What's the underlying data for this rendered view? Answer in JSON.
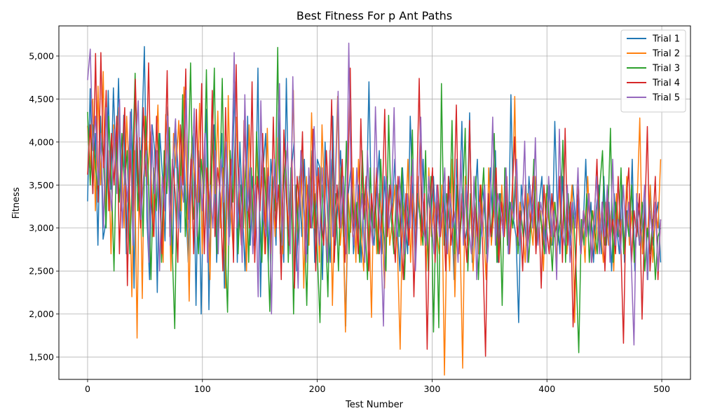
{
  "chart_data": {
    "type": "line",
    "title": "Best Fitness For p Ant Paths",
    "xlabel": "Test Number",
    "ylabel": "Fitness",
    "xlim": [
      -25,
      525
    ],
    "ylim": [
      1240,
      5350
    ],
    "x_ticks": [
      0,
      100,
      200,
      300,
      400,
      500
    ],
    "y_ticks": [
      1500,
      2000,
      2500,
      3000,
      3500,
      4000,
      4500,
      5000
    ],
    "y_tick_labels": [
      "1,500",
      "2,000",
      "2,500",
      "3,000",
      "3,500",
      "4,000",
      "4,500",
      "5,000"
    ],
    "grid": true,
    "legend_position": "top-right",
    "x_start": 0,
    "x_end": 499,
    "series": [
      {
        "name": "Trial 1",
        "color": "#1f77b4",
        "values": [
          3310,
          4620,
          3400,
          4100,
          2800,
          4300,
          2870,
          3050,
          4600,
          3450,
          4630,
          3700,
          4740,
          3200,
          4310,
          2700,
          3650,
          4380,
          2300,
          4230,
          3250,
          4060,
          5110,
          3100,
          2400,
          4200,
          3900,
          2250,
          4100,
          3600,
          2850,
          4410,
          3400,
          2700,
          4250,
          3700,
          2950,
          4180,
          3300,
          2600,
          3800,
          4100,
          2100,
          3900,
          2000,
          3600,
          4380,
          2050,
          3700,
          4200,
          2600,
          3400,
          4100,
          2300,
          3900,
          2900,
          3500,
          4700,
          2600,
          4000,
          3200,
          2500,
          4300,
          2800,
          3600,
          3100,
          4860,
          2200,
          3700,
          4100,
          2600,
          3800,
          3400,
          2800,
          4500,
          3200,
          2600,
          4740,
          3100,
          3700,
          4000,
          2500,
          3600,
          2900,
          3800,
          2700,
          3300,
          3900,
          2600,
          3800,
          3700,
          2400,
          4000,
          3100,
          2600,
          4300,
          2800,
          3300,
          3900,
          3000,
          1860,
          3400,
          3700,
          2700,
          3100,
          3500,
          2600,
          3400,
          3200,
          4700,
          3100,
          2800,
          3400,
          3900,
          2700,
          3600,
          3000,
          3500,
          3200,
          3800,
          3000,
          2500,
          3700,
          3100,
          2700,
          4300,
          3300,
          2600,
          3500,
          3000,
          3800,
          2800,
          3400,
          3100,
          3600,
          2900,
          3300,
          3000,
          3500,
          2700,
          3600,
          3200,
          2400,
          3800,
          3100,
          4240,
          2800,
          3000,
          4340,
          2600,
          3300,
          3800,
          2700,
          3500,
          3100,
          2900,
          3700,
          3000,
          3900,
          2600,
          3400,
          3100,
          3600,
          2700,
          4550,
          3100,
          2900,
          1900,
          3500,
          3200,
          2800,
          3600,
          3100,
          3400,
          2900,
          3300,
          3600,
          2700,
          3100,
          3500,
          2800,
          4240,
          3200,
          2700,
          3600,
          2900,
          3200,
          2800,
          3500,
          3100,
          3400,
          2700,
          3000,
          3800,
          2900,
          3300,
          2600,
          3200,
          3500,
          2700,
          3600,
          2800,
          3300,
          2500,
          3400,
          3000,
          2700,
          3500,
          2600,
          3200,
          2900,
          3800,
          2500,
          3300,
          3100,
          2700,
          3400,
          2400,
          3500,
          2800,
          3100,
          3300,
          2600
        ]
      },
      {
        "name": "Trial 2",
        "color": "#ff7f0e",
        "values": [
          4190,
          3700,
          4500,
          3200,
          4650,
          3500,
          4820,
          3100,
          3900,
          2700,
          4200,
          3500,
          4400,
          3800,
          3000,
          4300,
          3600,
          2200,
          3900,
          1720,
          4050,
          2180,
          4300,
          3500,
          4120,
          2900,
          3700,
          4430,
          3300,
          2600,
          4320,
          3800,
          2500,
          4100,
          3700,
          4250,
          3200,
          4640,
          3600,
          2150,
          4000,
          3600,
          3300,
          4450,
          2700,
          3800,
          3500,
          2400,
          4100,
          3400,
          4360,
          3000,
          3700,
          2300,
          4540,
          3200,
          2700,
          4290,
          3500,
          3000,
          3800,
          2500,
          4200,
          3400,
          2800,
          3900,
          3200,
          3600,
          2700,
          4160,
          3000,
          3500,
          2900,
          4050,
          3300,
          2700,
          3800,
          3000,
          3500,
          4600,
          2800,
          3400,
          3800,
          2300,
          3600,
          2800,
          4340,
          3000,
          3600,
          2600,
          4200,
          3300,
          2700,
          3900,
          2100,
          3500,
          4530,
          2800,
          3200,
          1790,
          3400,
          2950,
          3700,
          2600,
          3800,
          3000,
          2500,
          3500,
          3200,
          1960,
          3700,
          2700,
          3400,
          3100,
          2300,
          3600,
          2800,
          3100,
          3500,
          2700,
          1590,
          3300,
          3000,
          3800,
          2600,
          3400,
          3000,
          3600,
          2800,
          3300,
          2500,
          3700,
          2900,
          3300,
          3000,
          2700,
          3500,
          1290,
          3100,
          2500,
          3800,
          2200,
          3400,
          2900,
          1370,
          3600,
          2800,
          3300,
          2500,
          3100,
          2700,
          3500,
          3000,
          2400,
          3700,
          2800,
          3200,
          2900,
          2600,
          3500,
          2900,
          3300,
          2700,
          3200,
          4530,
          2800,
          3300,
          3000,
          2600,
          3400,
          3100,
          2800,
          3600,
          2900,
          3200,
          2500,
          3400,
          3100,
          2800,
          3300,
          2600,
          3500,
          2900,
          3200,
          2700,
          3100,
          3500,
          1900,
          3300,
          2800,
          3100,
          2600,
          3600,
          2900,
          3200,
          2700,
          3400,
          3000,
          2600,
          3300,
          2800,
          3200,
          2500,
          3400,
          2900,
          3100,
          2700,
          3600,
          2800,
          3200,
          2600,
          3300,
          4280,
          2700,
          3100,
          2900,
          3500,
          2600,
          3200,
          3000,
          3800
        ]
      },
      {
        "name": "Trial 3",
        "color": "#2ca02c",
        "values": [
          4350,
          3500,
          4200,
          3700,
          3400,
          4100,
          3800,
          3000,
          4300,
          3600,
          2500,
          4000,
          3300,
          4100,
          3500,
          3900,
          2700,
          3700,
          4800,
          3200,
          3900,
          2900,
          4300,
          3600,
          2400,
          3700,
          3200,
          4100,
          2600,
          3900,
          3400,
          4170,
          2800,
          1830,
          3700,
          3200,
          4550,
          2900,
          3600,
          4920,
          3100,
          3500,
          2700,
          3800,
          3400,
          4840,
          3000,
          3700,
          4860,
          2700,
          3400,
          4740,
          2900,
          2020,
          3900,
          3300,
          4100,
          2700,
          3500,
          3000,
          3800,
          2600,
          3700,
          2800,
          4120,
          3300,
          2600,
          3700,
          3000,
          2030,
          3600,
          3200,
          5100,
          2700,
          3400,
          3900,
          2600,
          3700,
          2000,
          3500,
          2800,
          3900,
          3200,
          2100,
          3600,
          3000,
          3400,
          2700,
          1900,
          3500,
          3100,
          2200,
          3800,
          3000,
          3400,
          2500,
          3700,
          2900,
          4010,
          2700,
          3600,
          3000,
          3300,
          2600,
          3900,
          3100,
          2400,
          3700,
          2900,
          3300,
          2700,
          3800,
          3000,
          2500,
          4310,
          3100,
          2700,
          3500,
          2900,
          3700,
          2400,
          3300,
          3000,
          4140,
          2600,
          3400,
          3100,
          2800,
          3900,
          2500,
          3600,
          1790,
          3300,
          1840,
          4680,
          2800,
          3400,
          3000,
          4250,
          2700,
          3500,
          2900,
          3300,
          4160,
          2500,
          3400,
          2900,
          3600,
          2400,
          3200,
          3700,
          2700,
          3300,
          2900,
          4100,
          2600,
          3400,
          2100,
          3700,
          2800,
          3300,
          3000,
          3600,
          2700,
          3200,
          2900,
          3500,
          2600,
          3100,
          3800,
          2800,
          3300,
          3000,
          2700,
          3500,
          3000,
          2500,
          3300,
          2800,
          3100,
          4020,
          2600,
          3400,
          2900,
          3200,
          2500,
          1550,
          3100,
          2800,
          3400,
          2600,
          3200,
          3000,
          2700,
          3500,
          3900,
          2800,
          3100,
          4160,
          2600,
          3300,
          2900,
          3700,
          2700,
          3200,
          2900,
          3500,
          2600,
          3100,
          2800,
          3300,
          2500,
          3000,
          2700,
          3100,
          2400,
          2900,
          3000
        ]
      },
      {
        "name": "Trial 4",
        "color": "#d62728",
        "values": [
          3620,
          4200,
          3400,
          5030,
          3300,
          5040,
          3700,
          4600,
          3200,
          4100,
          3500,
          4300,
          2700,
          3800,
          4400,
          2330,
          3900,
          3200,
          4730,
          3600,
          3000,
          4400,
          3600,
          4920,
          3300,
          2900,
          4300,
          3500,
          2700,
          3600,
          4830,
          2900,
          3800,
          3400,
          2600,
          4200,
          3500,
          4850,
          3100,
          3800,
          2700,
          4380,
          3300,
          4680,
          2700,
          3700,
          3200,
          4600,
          2900,
          3700,
          3400,
          2500,
          4400,
          3100,
          3800,
          2600,
          4900,
          3300,
          2800,
          4250,
          3500,
          3000,
          4700,
          2600,
          3600,
          3200,
          4100,
          2700,
          3700,
          2700,
          4290,
          3000,
          3500,
          2400,
          4140,
          3300,
          2800,
          3800,
          2300,
          3600,
          3200,
          4120,
          2700,
          3500,
          3000,
          4150,
          2500,
          3700,
          3100,
          2800,
          3900,
          3300,
          4490,
          2600,
          3500,
          3000,
          3800,
          2600,
          3400,
          4860,
          2900,
          3300,
          2700,
          4270,
          3100,
          3600,
          2500,
          3400,
          3000,
          3700,
          2700,
          3200,
          4380,
          2900,
          3500,
          3100,
          2600,
          3600,
          3000,
          2400,
          3400,
          2800,
          3600,
          2200,
          3300,
          4740,
          2900,
          3400,
          1590,
          3200,
          3700,
          2600,
          3500,
          2900,
          3300,
          2500,
          3600,
          2800,
          3200,
          4430,
          2700,
          3400,
          3000,
          2600,
          4250,
          2800,
          3300,
          2900,
          3500,
          2700,
          1510,
          3400,
          2900,
          3200,
          3700,
          2600,
          3300,
          2900,
          3600,
          2700,
          3400,
          4060,
          2900,
          3200,
          2500,
          3500,
          2800,
          3100,
          3600,
          2700,
          3300,
          2300,
          3500,
          3000,
          2700,
          3400,
          2900,
          3100,
          3600,
          2600,
          4160,
          2800,
          3300,
          1850,
          2600,
          3500,
          2700,
          3200,
          2900,
          3400,
          2600,
          3100,
          3800,
          2800,
          3300,
          2500,
          3400,
          2900,
          3100,
          2700,
          3600,
          2800,
          1660,
          3300,
          3700,
          2600,
          3200,
          2900,
          3400,
          1940,
          3100,
          4180,
          2500,
          3000,
          3600,
          2400,
          3100
        ]
      },
      {
        "name": "Trial 5",
        "color": "#9467bd",
        "values": [
          4720,
          5080,
          3900,
          4300,
          3500,
          4100,
          3000,
          4400,
          3600,
          3200,
          4150,
          3400,
          4500,
          3000,
          3700,
          3300,
          4350,
          2800,
          3900,
          4480,
          3100,
          3600,
          3900,
          2600,
          4200,
          3400,
          3900,
          2500,
          3600,
          3200,
          4300,
          2800,
          3800,
          4270,
          3000,
          3600,
          3300,
          4600,
          3000,
          3500,
          4390,
          2900,
          3700,
          3200,
          4100,
          2600,
          3500,
          3000,
          3900,
          2700,
          3800,
          3300,
          4000,
          2800,
          3600,
          5040,
          3000,
          3700,
          2600,
          4550,
          3200,
          3700,
          2700,
          3500,
          2200,
          4480,
          3100,
          2900,
          3600,
          2000,
          3800,
          3300,
          4680,
          2800,
          3500,
          4000,
          2700,
          4760,
          3200,
          2300,
          3900,
          3400,
          2600,
          3700,
          3000,
          4180,
          3300,
          2800,
          3700,
          3100,
          2600,
          3900,
          2900,
          3500,
          4590,
          3000,
          3600,
          2700,
          5150,
          3200,
          2800,
          3700,
          3000,
          3400,
          2600,
          3900,
          3100,
          2800,
          4410,
          3300,
          2900,
          1860,
          3600,
          3000,
          3300,
          4400,
          2900,
          3600,
          3100,
          2700,
          3400,
          3000,
          3800,
          2500,
          3300,
          4290,
          3000,
          2800,
          3600,
          3100,
          2700,
          3500,
          2900,
          3200,
          3700,
          2700,
          3400,
          3000,
          3200,
          2600,
          3900,
          2800,
          3500,
          3000,
          2700,
          3600,
          2400,
          3300,
          2900,
          3500,
          2600,
          3100,
          4290,
          2800,
          3400,
          3200,
          2900,
          3700,
          2700,
          3300,
          3100,
          3800,
          2800,
          3200,
          4010,
          2600,
          3500,
          3000,
          4050,
          2800,
          3300,
          3100,
          2700,
          3600,
          2900,
          3200,
          2400,
          4150,
          3000,
          2800,
          3500,
          2600,
          3300,
          3000,
          3700,
          2700,
          3200,
          2900,
          3400,
          2600,
          3100,
          3600,
          2700,
          3300,
          2900,
          3500,
          2600,
          3800,
          2800,
          3100,
          2700,
          3500,
          2900,
          3300,
          2600,
          1640,
          3400,
          2800,
          3000,
          3500,
          2400,
          3200,
          2900,
          3300,
          2500,
          3100
        ]
      }
    ]
  }
}
